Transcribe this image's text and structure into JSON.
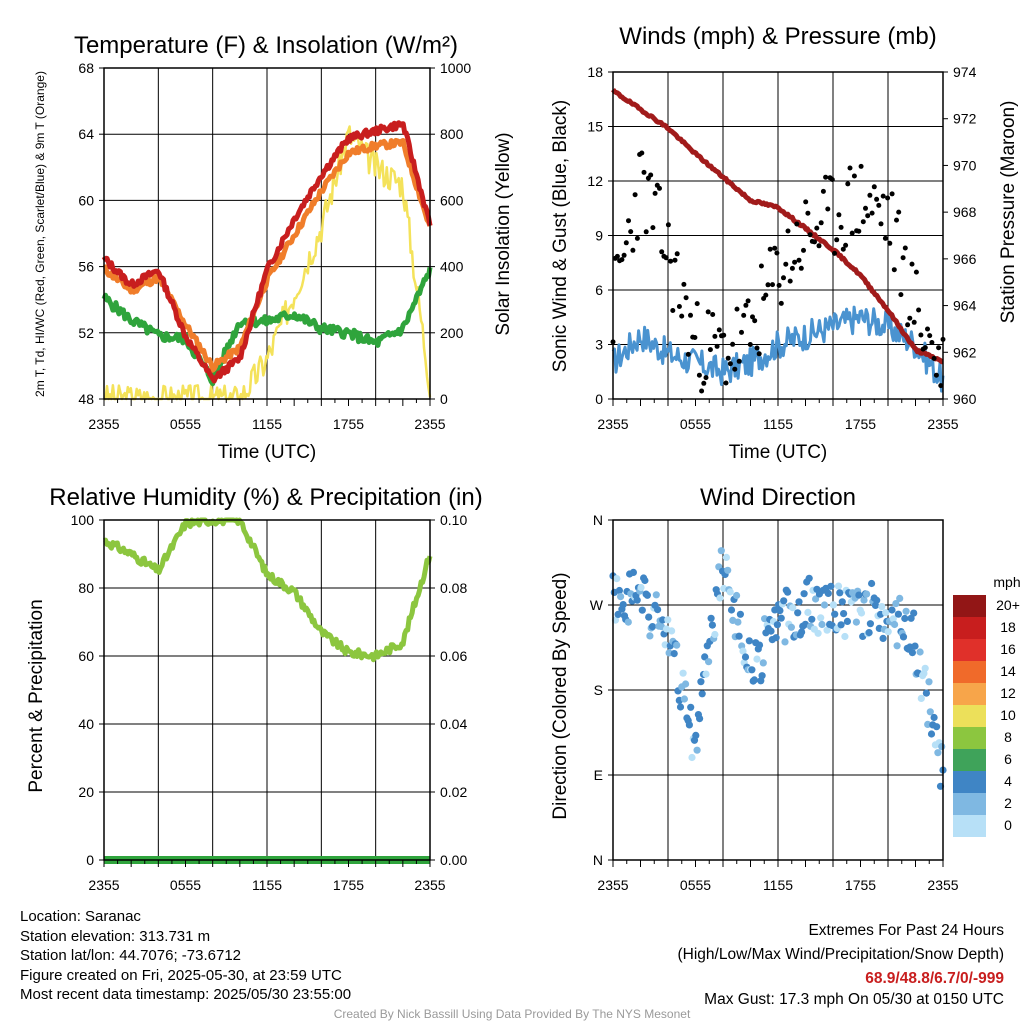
{
  "x_ticks": [
    "2355",
    "0555",
    "1155",
    "1755",
    "2355"
  ],
  "colors": {
    "temp": "#c81e1e",
    "hiwc": "#2fa43c",
    "t9m": "#f07d2a",
    "solar": "#f4e25a",
    "wind": "#4a93d0",
    "gust": "#000000",
    "pressure": "#a11b1b",
    "rh": "#8cc63f",
    "precip": "#2fa43c"
  },
  "panels": {
    "temp": {
      "title": "Temperature (F) & Insolation (W/m²)",
      "ylabel": "2m T, Td, HI/WC (Red, Green, Scarlet/Blue) & 9m T (Orange)",
      "ylabel2": "Solar Insolation (Yellow)",
      "xlabel": "Time (UTC)",
      "left_ticks": [
        "68",
        "64",
        "60",
        "56",
        "52",
        "48"
      ],
      "right_ticks": [
        "1000",
        "800",
        "600",
        "400",
        "200",
        "0"
      ]
    },
    "wind": {
      "title": "Winds (mph) & Pressure (mb)",
      "ylabel": "Sonic Wind & Gust (Blue, Black)",
      "ylabel2": "Station Pressure (Maroon)",
      "xlabel": "Time (UTC)",
      "left_ticks": [
        "18",
        "15",
        "12",
        "9",
        "6",
        "3",
        "0"
      ],
      "right_ticks": [
        "974",
        "972",
        "970",
        "968",
        "966",
        "964",
        "962",
        "960"
      ]
    },
    "rh": {
      "title": "Relative Humidity (%) & Precipitation (in)",
      "ylabel": "Percent & Precipitation",
      "left_ticks": [
        "100",
        "80",
        "60",
        "40",
        "20",
        "0"
      ],
      "right_ticks": [
        "0.10",
        "0.08",
        "0.06",
        "0.04",
        "0.02",
        "0.00"
      ]
    },
    "dir": {
      "title": "Wind Direction",
      "ylabel": "Direction (Colored By Speed)",
      "left_ticks": [
        "N",
        "W",
        "S",
        "E",
        "N"
      ],
      "legend_title": "mph",
      "legend_labels": [
        "20+",
        "18",
        "16",
        "14",
        "12",
        "10",
        "8",
        "6",
        "4",
        "2",
        "0"
      ],
      "legend_colors": [
        "#921616",
        "#c81e1e",
        "#e0302a",
        "#f06a2a",
        "#f7a54a",
        "#ece05a",
        "#8cc63f",
        "#3fa35a",
        "#3f85c5",
        "#7fb8e2",
        "#b7e0f7"
      ]
    }
  },
  "chart_data": [
    {
      "type": "line",
      "title": "Temperature (F) & Insolation (W/m²)",
      "xlabel": "Time (UTC)",
      "ylabel": "2m T, Td, HI/WC (Red, Green, Scarlet/Blue) & 9m T (Orange)",
      "ylabel2": "Solar Insolation (Yellow)",
      "x": [
        "2355",
        "0155",
        "0355",
        "0555",
        "0755",
        "0955",
        "1155",
        "1355",
        "1555",
        "1755",
        "1955",
        "2155",
        "2355"
      ],
      "ylim": [
        47.7,
        70.3
      ],
      "ylim2": [
        0,
        1000
      ],
      "series": [
        {
          "name": "2m T",
          "axis": "left",
          "values": [
            57.3,
            55.5,
            56.5,
            52.0,
            49.0,
            50.5,
            56.5,
            60.0,
            63.0,
            65.5,
            66.0,
            66.5,
            59.6
          ]
        },
        {
          "name": "9m T",
          "axis": "left",
          "values": [
            56.6,
            55.1,
            56.0,
            52.8,
            49.9,
            51.2,
            55.8,
            58.9,
            61.9,
            64.5,
            65.0,
            65.2,
            59.4
          ]
        },
        {
          "name": "HI/WC",
          "axis": "left",
          "values": [
            54.6,
            53.1,
            52.0,
            51.8,
            49.0,
            53.0,
            53.0,
            53.5,
            52.5,
            52.2,
            51.5,
            52.5,
            56.5
          ]
        },
        {
          "name": "Solar Insolation",
          "axis": "right",
          "values": [
            0,
            0,
            0,
            0,
            0,
            0,
            120,
            320,
            520,
            800,
            700,
            650,
            40
          ]
        }
      ]
    },
    {
      "type": "line",
      "title": "Winds (mph) & Pressure (mb)",
      "xlabel": "Time (UTC)",
      "ylabel": "Sonic Wind & Gust (Blue, Black)",
      "ylabel2": "Station Pressure (Maroon)",
      "x": [
        "2355",
        "0155",
        "0355",
        "0555",
        "0755",
        "0955",
        "1155",
        "1355",
        "1555",
        "1755",
        "1955",
        "2155",
        "2355"
      ],
      "ylim": [
        0,
        18
      ],
      "ylim2": [
        960,
        974
      ],
      "series": [
        {
          "name": "Sonic Wind",
          "axis": "left",
          "values": [
            2.0,
            3.5,
            2.5,
            2.0,
            1.5,
            2.0,
            3.0,
            3.5,
            4.0,
            4.5,
            4.0,
            3.0,
            1.0
          ]
        },
        {
          "name": "Gust",
          "axis": "left",
          "values": [
            5.0,
            12.0,
            8.0,
            3.0,
            2.5,
            3.5,
            7.0,
            9.0,
            10.0,
            11.0,
            10.0,
            5.0,
            1.5
          ]
        },
        {
          "name": "Station Pressure",
          "axis": "right",
          "values": [
            973.2,
            972.4,
            971.6,
            970.5,
            969.5,
            968.5,
            968.2,
            967.3,
            966.4,
            965.3,
            963.8,
            962.1,
            961.6
          ]
        }
      ]
    },
    {
      "type": "line",
      "title": "Relative Humidity (%) & Precipitation (in)",
      "ylabel": "Percent & Precipitation",
      "x": [
        "2355",
        "0155",
        "0355",
        "0555",
        "0755",
        "0955",
        "1155",
        "1355",
        "1555",
        "1755",
        "1955",
        "2155",
        "2355"
      ],
      "ylim": [
        0,
        100
      ],
      "ylim2": [
        0,
        0.1
      ],
      "series": [
        {
          "name": "Relative Humidity",
          "axis": "left",
          "values": [
            94,
            90,
            85,
            99,
            100,
            100,
            84,
            79,
            67,
            61,
            60,
            64,
            90
          ]
        },
        {
          "name": "Precipitation",
          "axis": "right",
          "values": [
            0,
            0,
            0,
            0,
            0,
            0,
            0,
            0,
            0,
            0,
            0,
            0,
            0
          ]
        }
      ]
    },
    {
      "type": "scatter",
      "title": "Wind Direction",
      "ylabel": "Direction (Colored By Speed)",
      "yticks": [
        "N",
        "W",
        "S",
        "E",
        "N"
      ],
      "x": [
        "2355",
        "0155",
        "0355",
        "0555",
        "0755",
        "0955",
        "1155",
        "1355",
        "1555",
        "1755",
        "1955",
        "2155",
        "2355"
      ],
      "series": [
        {
          "name": "Direction",
          "values": [
            280,
            280,
            240,
            120,
            320,
            200,
            250,
            270,
            265,
            265,
            260,
            230,
            90
          ]
        }
      ]
    }
  ],
  "info": {
    "location": "Location: Saranac",
    "elevation": "Station elevation: 313.731 m",
    "latlon": "Station lat/lon: 44.7076; -73.6712",
    "created": "Figure created on Fri, 2025-05-30, at 23:59 UTC",
    "recent": "Most recent data timestamp: 2025/05/30 23:55:00"
  },
  "extremes": {
    "title": "Extremes For Past 24 Hours",
    "subtitle": "(High/Low/Max Wind/Precipitation/Snow Depth)",
    "values": "68.9/48.8/6.7/0/-999",
    "gust": "Max Gust: 17.3 mph On 05/30 at 0150 UTC"
  },
  "credit": "Created By Nick Bassill Using Data Provided By The NYS Mesonet"
}
